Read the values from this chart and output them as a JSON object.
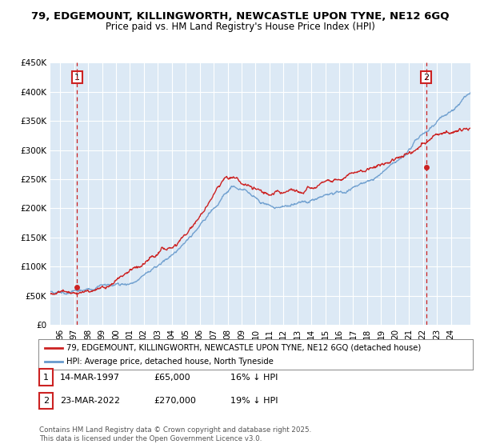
{
  "title": "79, EDGEMOUNT, KILLINGWORTH, NEWCASTLE UPON TYNE, NE12 6GQ",
  "subtitle": "Price paid vs. HM Land Registry's House Price Index (HPI)",
  "ylim": [
    0,
    450000
  ],
  "yticks": [
    0,
    50000,
    100000,
    150000,
    200000,
    250000,
    300000,
    350000,
    400000,
    450000
  ],
  "ytick_labels": [
    "£0",
    "£50K",
    "£100K",
    "£150K",
    "£200K",
    "£250K",
    "£300K",
    "£350K",
    "£400K",
    "£450K"
  ],
  "xlim_start": 1995.3,
  "xlim_end": 2025.4,
  "plot_bg_color": "#dce9f5",
  "grid_color": "#ffffff",
  "hpi_color": "#6699cc",
  "price_color": "#cc2222",
  "marker1_date": 1997.21,
  "marker1_price": 65000,
  "marker2_date": 2022.22,
  "marker2_price": 270000,
  "legend_line1": "79, EDGEMOUNT, KILLINGWORTH, NEWCASTLE UPON TYNE, NE12 6GQ (detached house)",
  "legend_line2": "HPI: Average price, detached house, North Tyneside",
  "note1_date": "14-MAR-1997",
  "note1_price": "£65,000",
  "note1_hpi": "16% ↓ HPI",
  "note2_date": "23-MAR-2022",
  "note2_price": "£270,000",
  "note2_hpi": "19% ↓ HPI",
  "footer": "Contains HM Land Registry data © Crown copyright and database right 2025.\nThis data is licensed under the Open Government Licence v3.0.",
  "title_fontsize": 9.5,
  "subtitle_fontsize": 8.5,
  "tick_fontsize": 7.5,
  "xtick_years": [
    1996,
    1997,
    1998,
    1999,
    2000,
    2001,
    2002,
    2003,
    2004,
    2005,
    2006,
    2007,
    2008,
    2009,
    2010,
    2011,
    2012,
    2013,
    2014,
    2015,
    2016,
    2017,
    2018,
    2019,
    2020,
    2021,
    2022,
    2023,
    2024
  ]
}
